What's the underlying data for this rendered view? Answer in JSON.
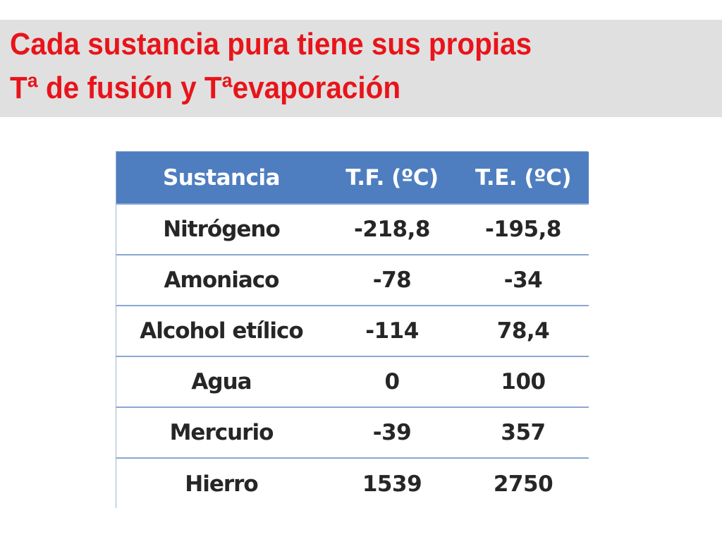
{
  "title": {
    "line1": "Cada sustancia pura tiene sus propias",
    "line2": "Tª de fusión y Tªevaporación"
  },
  "table": {
    "headers": [
      "Sustancia",
      "T.F. (ºC)",
      "T.E. (ºC)"
    ],
    "rows": [
      [
        "Nitrógeno",
        "-218,8",
        "-195,8"
      ],
      [
        "Amoniaco",
        "-78",
        "-34"
      ],
      [
        "Alcohol etílico",
        "-114",
        "78,4"
      ],
      [
        "Agua",
        "0",
        "100"
      ],
      [
        "Mercurio",
        "-39",
        "357"
      ],
      [
        "Hierro",
        "1539",
        "2750"
      ]
    ]
  },
  "colors": {
    "title_text": "#e8141a",
    "title_band": "#e0e0e0",
    "header_bg": "#4e7ec0",
    "header_text": "#ffffff",
    "row_divider": "#8aa6d4"
  }
}
